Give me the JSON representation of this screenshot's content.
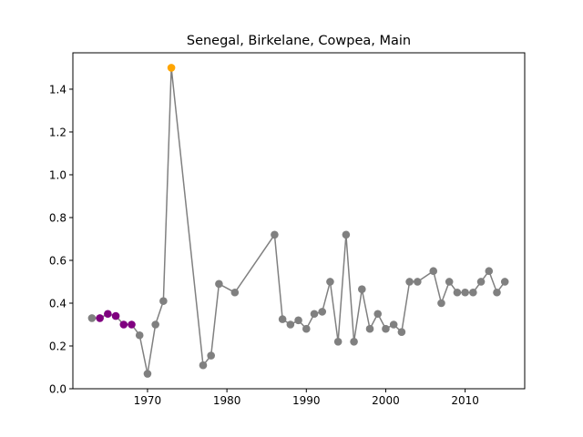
{
  "chart_data": {
    "type": "line",
    "title": "Senegal, Birkelane, Cowpea, Main",
    "xlabel": "",
    "ylabel": "",
    "xlim": [
      1960.6,
      2017.5
    ],
    "ylim": [
      0,
      1.57
    ],
    "x_ticks": [
      1970,
      1980,
      1990,
      2000,
      2010
    ],
    "y_ticks": [
      0.0,
      0.2,
      0.4,
      0.6,
      0.8,
      1.0,
      1.2,
      1.4
    ],
    "grid": false,
    "line_color": "#808080",
    "series": [
      {
        "points": [
          {
            "x": 1963,
            "y": 0.33,
            "color": "#808080"
          },
          {
            "x": 1964,
            "y": 0.33,
            "color": "#800080"
          },
          {
            "x": 1965,
            "y": 0.35,
            "color": "#800080"
          },
          {
            "x": 1966,
            "y": 0.34,
            "color": "#800080"
          },
          {
            "x": 1967,
            "y": 0.3,
            "color": "#800080"
          },
          {
            "x": 1968,
            "y": 0.3,
            "color": "#800080"
          },
          {
            "x": 1969,
            "y": 0.25,
            "color": "#808080"
          },
          {
            "x": 1970,
            "y": 0.07,
            "color": "#808080"
          },
          {
            "x": 1971,
            "y": 0.3,
            "color": "#808080"
          },
          {
            "x": 1972,
            "y": 0.41,
            "color": "#808080"
          },
          {
            "x": 1973,
            "y": 1.5,
            "color": "#ffa500"
          },
          {
            "x": 1977,
            "y": 0.11,
            "color": "#808080"
          },
          {
            "x": 1978,
            "y": 0.155,
            "color": "#808080"
          },
          {
            "x": 1979,
            "y": 0.49,
            "color": "#808080"
          },
          {
            "x": 1981,
            "y": 0.45,
            "color": "#808080"
          },
          {
            "x": 1986,
            "y": 0.72,
            "color": "#808080"
          },
          {
            "x": 1987,
            "y": 0.325,
            "color": "#808080"
          },
          {
            "x": 1988,
            "y": 0.3,
            "color": "#808080"
          },
          {
            "x": 1989,
            "y": 0.32,
            "color": "#808080"
          },
          {
            "x": 1990,
            "y": 0.28,
            "color": "#808080"
          },
          {
            "x": 1991,
            "y": 0.35,
            "color": "#808080"
          },
          {
            "x": 1992,
            "y": 0.36,
            "color": "#808080"
          },
          {
            "x": 1993,
            "y": 0.5,
            "color": "#808080"
          },
          {
            "x": 1994,
            "y": 0.22,
            "color": "#808080"
          },
          {
            "x": 1995,
            "y": 0.72,
            "color": "#808080"
          },
          {
            "x": 1996,
            "y": 0.22,
            "color": "#808080"
          },
          {
            "x": 1997,
            "y": 0.465,
            "color": "#808080"
          },
          {
            "x": 1998,
            "y": 0.28,
            "color": "#808080"
          },
          {
            "x": 1999,
            "y": 0.35,
            "color": "#808080"
          },
          {
            "x": 2000,
            "y": 0.28,
            "color": "#808080"
          },
          {
            "x": 2001,
            "y": 0.3,
            "color": "#808080"
          },
          {
            "x": 2002,
            "y": 0.265,
            "color": "#808080"
          },
          {
            "x": 2003,
            "y": 0.5,
            "color": "#808080"
          },
          {
            "x": 2004,
            "y": 0.5,
            "color": "#808080"
          },
          {
            "x": 2006,
            "y": 0.55,
            "color": "#808080"
          },
          {
            "x": 2007,
            "y": 0.4,
            "color": "#808080"
          },
          {
            "x": 2008,
            "y": 0.5,
            "color": "#808080"
          },
          {
            "x": 2009,
            "y": 0.45,
            "color": "#808080"
          },
          {
            "x": 2010,
            "y": 0.45,
            "color": "#808080"
          },
          {
            "x": 2011,
            "y": 0.45,
            "color": "#808080"
          },
          {
            "x": 2012,
            "y": 0.5,
            "color": "#808080"
          },
          {
            "x": 2013,
            "y": 0.55,
            "color": "#808080"
          },
          {
            "x": 2014,
            "y": 0.45,
            "color": "#808080"
          },
          {
            "x": 2015,
            "y": 0.5,
            "color": "#808080"
          }
        ]
      }
    ]
  }
}
